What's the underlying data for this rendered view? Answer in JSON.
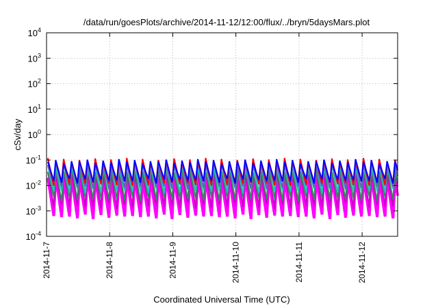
{
  "chart_data": {
    "type": "line",
    "title": "/data/run/goesPlots/archive/2014-11-12/12:00/flux/../bryn/5daysMars.plot",
    "xlabel": "Coordinated Universal Time (UTC)",
    "ylabel": "cSv/day",
    "x_ticks": [
      "2014-11-7",
      "2014-11-8",
      "2014-11-9",
      "2014-11-10",
      "2014-11-11",
      "2014-11-12"
    ],
    "xlim": [
      "2014-11-07T00:00",
      "2014-11-12T13:30"
    ],
    "y_scale": "log",
    "ylim": [
      0.0001,
      10000
    ],
    "y_ticks": [
      {
        "value": 0.0001,
        "base": "10",
        "exp": "-4"
      },
      {
        "value": 0.001,
        "base": "10",
        "exp": "-3"
      },
      {
        "value": 0.01,
        "base": "10",
        "exp": "-2"
      },
      {
        "value": 0.1,
        "base": "10",
        "exp": "-1"
      },
      {
        "value": 1,
        "base": "10",
        "exp": "0"
      },
      {
        "value": 10,
        "base": "10",
        "exp": "1"
      },
      {
        "value": 100,
        "base": "10",
        "exp": "2"
      },
      {
        "value": 1000,
        "base": "10",
        "exp": "3"
      },
      {
        "value": 10000,
        "base": "10",
        "exp": "4"
      }
    ],
    "grid": true,
    "pattern": {
      "description": "sawtooth: sharp rise to peak then decay, repeating",
      "period_hours": 3,
      "peak_times": [
        "2014-11-07T00:30",
        "2014-11-07T03:30",
        "2014-11-07T06:30",
        "2014-11-07T09:30",
        "2014-11-07T12:30",
        "2014-11-07T15:30",
        "2014-11-07T18:30",
        "2014-11-07T21:30",
        "2014-11-08T00:30",
        "2014-11-08T03:30",
        "2014-11-08T06:30",
        "2014-11-08T09:30",
        "2014-11-08T12:30",
        "2014-11-08T15:30",
        "2014-11-08T18:30",
        "2014-11-08T21:30",
        "2014-11-09T00:30",
        "2014-11-09T03:30",
        "2014-11-09T06:30",
        "2014-11-09T09:30",
        "2014-11-09T12:30",
        "2014-11-09T15:30",
        "2014-11-09T18:30",
        "2014-11-09T21:30",
        "2014-11-10T00:30",
        "2014-11-10T03:30",
        "2014-11-10T06:30",
        "2014-11-10T09:30",
        "2014-11-10T12:30",
        "2014-11-10T15:30",
        "2014-11-10T18:30",
        "2014-11-10T21:30",
        "2014-11-11T00:30",
        "2014-11-11T03:30",
        "2014-11-11T06:30",
        "2014-11-11T09:30",
        "2014-11-11T12:30",
        "2014-11-11T15:30",
        "2014-11-11T18:30",
        "2014-11-11T21:30",
        "2014-11-12T00:30",
        "2014-11-12T03:30",
        "2014-11-12T06:30",
        "2014-11-12T09:30",
        "2014-11-12T12:30"
      ]
    },
    "series": [
      {
        "color": "#ff00ff",
        "peak": 0.02,
        "trough": 0.0006,
        "fill": true
      },
      {
        "color": "#cc00cc",
        "peak": 0.03,
        "trough": 0.0015
      },
      {
        "color": "#2e8b57",
        "peak": 0.04,
        "trough": 0.003
      },
      {
        "color": "#20c0c0",
        "peak": 0.06,
        "trough": 0.006
      },
      {
        "color": "#6a5acd",
        "peak": 0.07,
        "trough": 0.009
      },
      {
        "color": "#ff0000",
        "peak": 0.1,
        "trough": 0.012
      },
      {
        "color": "#0000ff",
        "peak": 0.09,
        "trough": 0.015
      }
    ]
  }
}
